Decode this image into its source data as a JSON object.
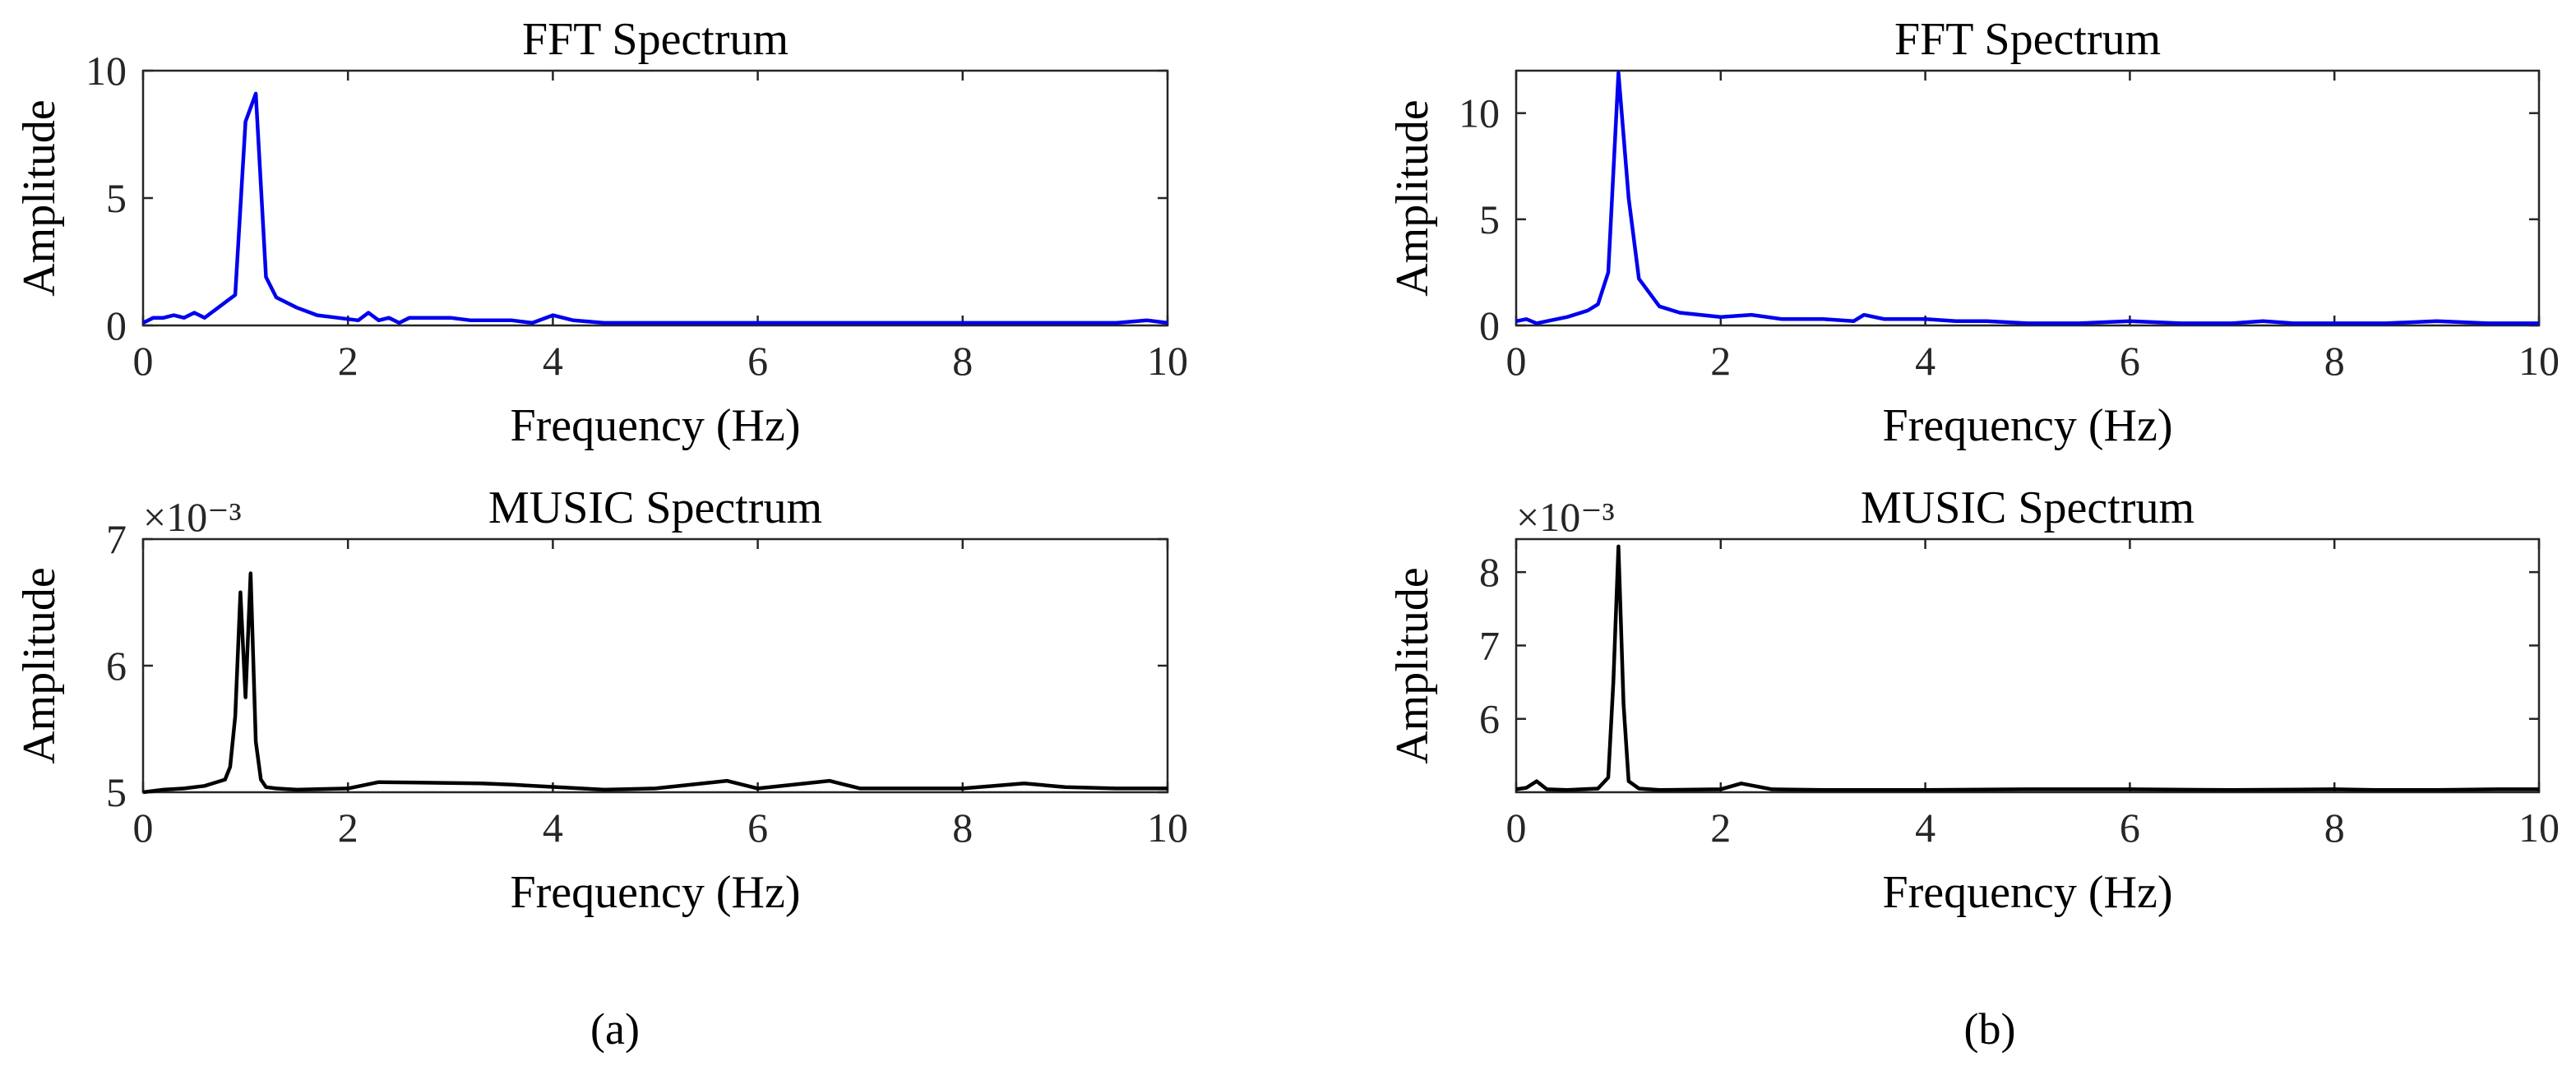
{
  "panels": [
    {
      "label_letter": "a",
      "label_display": "(a)"
    },
    {
      "label_letter": "b",
      "label_display": "(b)"
    }
  ],
  "chart_data": [
    {
      "id": "a-fft",
      "type": "line",
      "title": "FFT Spectrum",
      "xlabel": "Frequency (Hz)",
      "ylabel": "Amplitude",
      "xlim": [
        0,
        10
      ],
      "ylim": [
        0,
        10
      ],
      "xticks": [
        0,
        2,
        4,
        6,
        8,
        10
      ],
      "yticks": [
        0,
        5,
        10
      ],
      "exponent_label": "",
      "color": "#0000ee",
      "series": [
        {
          "x": [
            0,
            0.1,
            0.2,
            0.3,
            0.4,
            0.5,
            0.6,
            0.7,
            0.8,
            0.9,
            1.0,
            1.1,
            1.2,
            1.3,
            1.5,
            1.7,
            1.9,
            2.1,
            2.2,
            2.3,
            2.4,
            2.5,
            2.6,
            2.8,
            3.0,
            3.2,
            3.4,
            3.6,
            3.8,
            4.0,
            4.2,
            4.5,
            5.0,
            5.5,
            6.0,
            6.5,
            7.0,
            7.5,
            8.0,
            8.5,
            9.0,
            9.2,
            9.5,
            9.8,
            10.0
          ],
          "y": [
            0.1,
            0.3,
            0.3,
            0.4,
            0.3,
            0.5,
            0.3,
            0.6,
            0.9,
            1.2,
            8.0,
            9.1,
            1.9,
            1.1,
            0.7,
            0.4,
            0.3,
            0.2,
            0.5,
            0.2,
            0.3,
            0.1,
            0.3,
            0.3,
            0.3,
            0.2,
            0.2,
            0.2,
            0.1,
            0.4,
            0.2,
            0.1,
            0.1,
            0.1,
            0.1,
            0.1,
            0.1,
            0.1,
            0.1,
            0.1,
            0.1,
            0.1,
            0.1,
            0.2,
            0.1
          ]
        }
      ]
    },
    {
      "id": "a-music",
      "type": "line",
      "title": "MUSIC Spectrum",
      "xlabel": "Frequency (Hz)",
      "ylabel": "Amplitude",
      "xlim": [
        0,
        10
      ],
      "ylim": [
        5,
        7
      ],
      "xticks": [
        0,
        2,
        4,
        6,
        8,
        10
      ],
      "yticks": [
        5,
        6,
        7
      ],
      "exponent_label": "×10⁻³",
      "color": "#000000",
      "series": [
        {
          "x": [
            0,
            0.2,
            0.4,
            0.6,
            0.8,
            0.85,
            0.9,
            0.95,
            1.0,
            1.05,
            1.1,
            1.15,
            1.2,
            1.3,
            1.5,
            2.0,
            2.3,
            3.3,
            3.6,
            4.5,
            5.0,
            5.7,
            6.0,
            6.7,
            7.0,
            8.0,
            8.6,
            9.0,
            9.5,
            10.0
          ],
          "y": [
            5.0,
            5.02,
            5.03,
            5.05,
            5.1,
            5.2,
            5.6,
            6.58,
            5.75,
            6.73,
            5.4,
            5.1,
            5.04,
            5.03,
            5.02,
            5.03,
            5.08,
            5.07,
            5.06,
            5.02,
            5.03,
            5.09,
            5.03,
            5.09,
            5.03,
            5.03,
            5.07,
            5.04,
            5.03,
            5.03
          ]
        }
      ]
    },
    {
      "id": "b-fft",
      "type": "line",
      "title": "FFT Spectrum",
      "xlabel": "Frequency (Hz)",
      "ylabel": "Amplitude",
      "xlim": [
        0,
        10
      ],
      "ylim": [
        0,
        12
      ],
      "xticks": [
        0,
        2,
        4,
        6,
        8,
        10
      ],
      "yticks": [
        0,
        5,
        10
      ],
      "exponent_label": "",
      "color": "#0000ee",
      "series": [
        {
          "x": [
            0,
            0.1,
            0.2,
            0.3,
            0.5,
            0.7,
            0.8,
            0.9,
            1.0,
            1.1,
            1.2,
            1.4,
            1.6,
            1.8,
            2.0,
            2.3,
            2.6,
            3.0,
            3.3,
            3.4,
            3.6,
            4.0,
            4.3,
            4.6,
            5.0,
            5.5,
            6.0,
            6.5,
            7.0,
            7.3,
            7.6,
            8.0,
            8.5,
            9.0,
            9.5,
            10.0
          ],
          "y": [
            0.2,
            0.3,
            0.1,
            0.2,
            0.4,
            0.7,
            1.0,
            2.5,
            11.9,
            6.0,
            2.2,
            0.9,
            0.6,
            0.5,
            0.4,
            0.5,
            0.3,
            0.3,
            0.2,
            0.5,
            0.3,
            0.3,
            0.2,
            0.2,
            0.1,
            0.1,
            0.2,
            0.1,
            0.1,
            0.2,
            0.1,
            0.1,
            0.1,
            0.2,
            0.1,
            0.1
          ]
        }
      ]
    },
    {
      "id": "b-music",
      "type": "line",
      "title": "MUSIC Spectrum",
      "xlabel": "Frequency (Hz)",
      "ylabel": "Amplitude",
      "xlim": [
        0,
        10
      ],
      "ylim": [
        5.0,
        8.45
      ],
      "xticks": [
        0,
        2,
        4,
        6,
        8,
        10
      ],
      "yticks": [
        6,
        7,
        8
      ],
      "exponent_label": "×10⁻³",
      "color": "#000000",
      "series": [
        {
          "x": [
            0,
            0.1,
            0.2,
            0.3,
            0.5,
            0.8,
            0.9,
            0.95,
            1.0,
            1.05,
            1.1,
            1.2,
            1.4,
            2.0,
            2.2,
            2.5,
            3.0,
            4.0,
            5.0,
            6.0,
            7.0,
            8.0,
            8.4,
            9.0,
            9.6,
            10.0
          ],
          "y": [
            5.04,
            5.06,
            5.15,
            5.04,
            5.03,
            5.05,
            5.2,
            6.5,
            8.35,
            6.2,
            5.15,
            5.05,
            5.03,
            5.04,
            5.12,
            5.04,
            5.03,
            5.03,
            5.04,
            5.04,
            5.03,
            5.04,
            5.03,
            5.03,
            5.04,
            5.04
          ]
        }
      ]
    }
  ]
}
